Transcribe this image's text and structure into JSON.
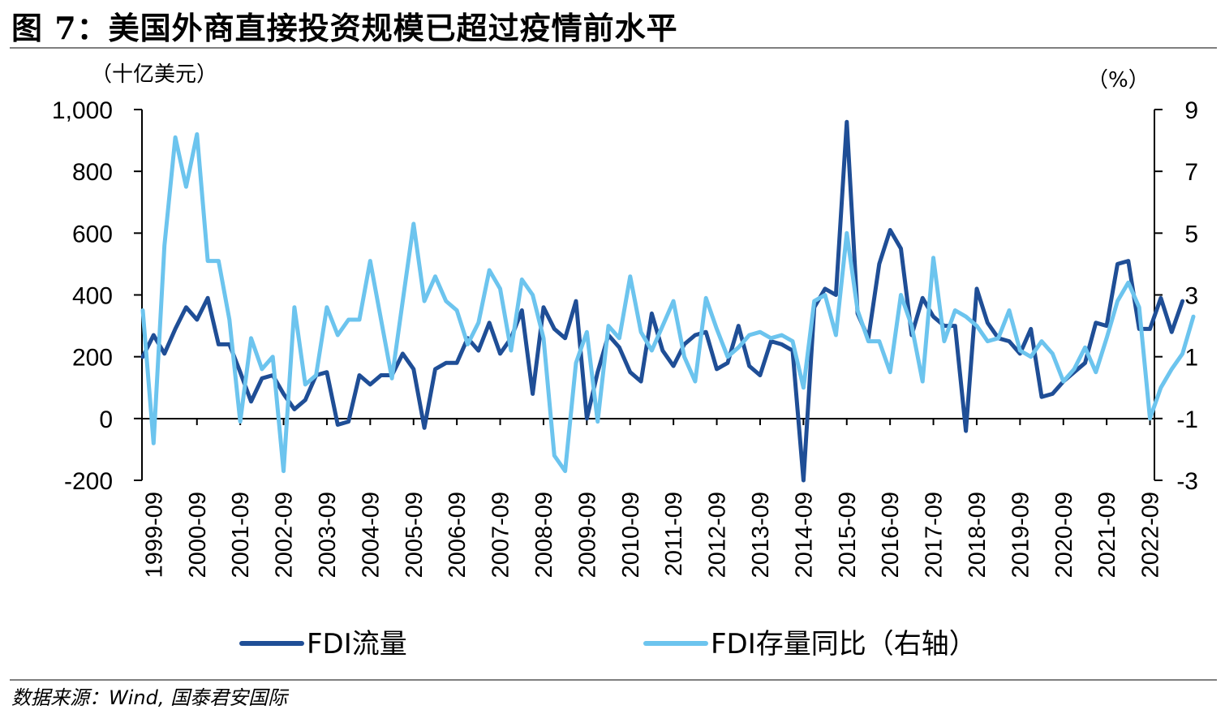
{
  "header": {
    "title": "图 7：美国外商直接投资规模已超过疫情前水平"
  },
  "source": {
    "text": "数据来源：Wind, 国泰君安国际"
  },
  "colors": {
    "flow": "#1f4e96",
    "stock_yoy": "#6cc4ee",
    "axis": "#000000",
    "rule": "#7f7f7f"
  },
  "chart_data": {
    "type": "line",
    "title": "美国外商直接投资规模已超过疫情前水平",
    "left_axis": {
      "unit_label": "（十亿美元）",
      "ylim": [
        -200,
        1000
      ],
      "ticks": [
        -200,
        0,
        200,
        400,
        600,
        800,
        1000
      ],
      "tick_labels": [
        "-200",
        "0",
        "200",
        "400",
        "600",
        "800",
        "1,000"
      ]
    },
    "right_axis": {
      "unit_label": "（%）",
      "ylim": [
        -3,
        9
      ],
      "ticks": [
        -3,
        -1,
        1,
        3,
        5,
        7,
        9
      ],
      "tick_labels": [
        "-3",
        "-1",
        "1",
        "3",
        "5",
        "7",
        "9"
      ]
    },
    "x_tick_labels": [
      "1999-09",
      "2000-09",
      "2001-09",
      "2002-09",
      "2003-09",
      "2004-09",
      "2005-09",
      "2006-09",
      "2007-09",
      "2008-09",
      "2009-09",
      "2010-09",
      "2011-09",
      "2012-09",
      "2013-09",
      "2014-09",
      "2015-09",
      "2016-09",
      "2017-09",
      "2018-09",
      "2019-09",
      "2020-09",
      "2021-09",
      "2022-09"
    ],
    "x_start": "1999-06",
    "frequency": "quarterly",
    "legend_position": "bottom",
    "series": [
      {
        "name": "FDI流量",
        "axis": "left",
        "values": [
          200,
          270,
          210,
          290,
          360,
          320,
          390,
          240,
          240,
          150,
          55,
          130,
          140,
          80,
          30,
          60,
          140,
          150,
          -20,
          -10,
          140,
          110,
          140,
          140,
          210,
          160,
          -30,
          160,
          180,
          180,
          260,
          220,
          310,
          210,
          260,
          350,
          80,
          360,
          290,
          260,
          380,
          0,
          150,
          270,
          230,
          150,
          120,
          340,
          220,
          170,
          240,
          270,
          280,
          160,
          180,
          300,
          170,
          140,
          250,
          240,
          220,
          -200,
          360,
          420,
          400,
          960,
          340,
          260,
          500,
          610,
          550,
          270,
          390,
          330,
          300,
          300,
          -40,
          420,
          310,
          260,
          250,
          210,
          290,
          70,
          80,
          120,
          150,
          180,
          310,
          300,
          500,
          510,
          290,
          290,
          390,
          280,
          380
        ]
      },
      {
        "name": "FDI存量同比（右轴）",
        "axis": "right",
        "values": [
          2.5,
          -1.8,
          4.6,
          8.1,
          6.5,
          8.2,
          4.1,
          4.1,
          2.2,
          -1.1,
          1.6,
          0.6,
          1.0,
          -2.7,
          2.6,
          0.1,
          0.4,
          2.6,
          1.7,
          2.2,
          2.2,
          4.1,
          2.2,
          0.3,
          2.8,
          5.3,
          2.8,
          3.6,
          2.8,
          2.5,
          1.4,
          2.1,
          3.8,
          3.2,
          1.2,
          3.5,
          3.0,
          1.6,
          -2.2,
          -2.7,
          0.8,
          1.8,
          -1.1,
          2.0,
          1.6,
          3.6,
          1.8,
          1.2,
          2.0,
          2.8,
          1.0,
          0.2,
          2.9,
          1.9,
          1.0,
          1.3,
          1.7,
          1.8,
          1.6,
          1.7,
          1.5,
          0.0,
          2.8,
          3.0,
          1.7,
          5.0,
          2.5,
          1.5,
          1.5,
          0.5,
          3.0,
          2.0,
          0.2,
          4.2,
          1.5,
          2.5,
          2.3,
          2.0,
          1.5,
          1.6,
          2.5,
          1.2,
          1.0,
          1.5,
          1.1,
          0.2,
          0.6,
          1.3,
          0.5,
          1.6,
          2.8,
          3.4,
          2.6,
          -1.0,
          0.0,
          0.6,
          1.1,
          2.3
        ]
      }
    ]
  }
}
